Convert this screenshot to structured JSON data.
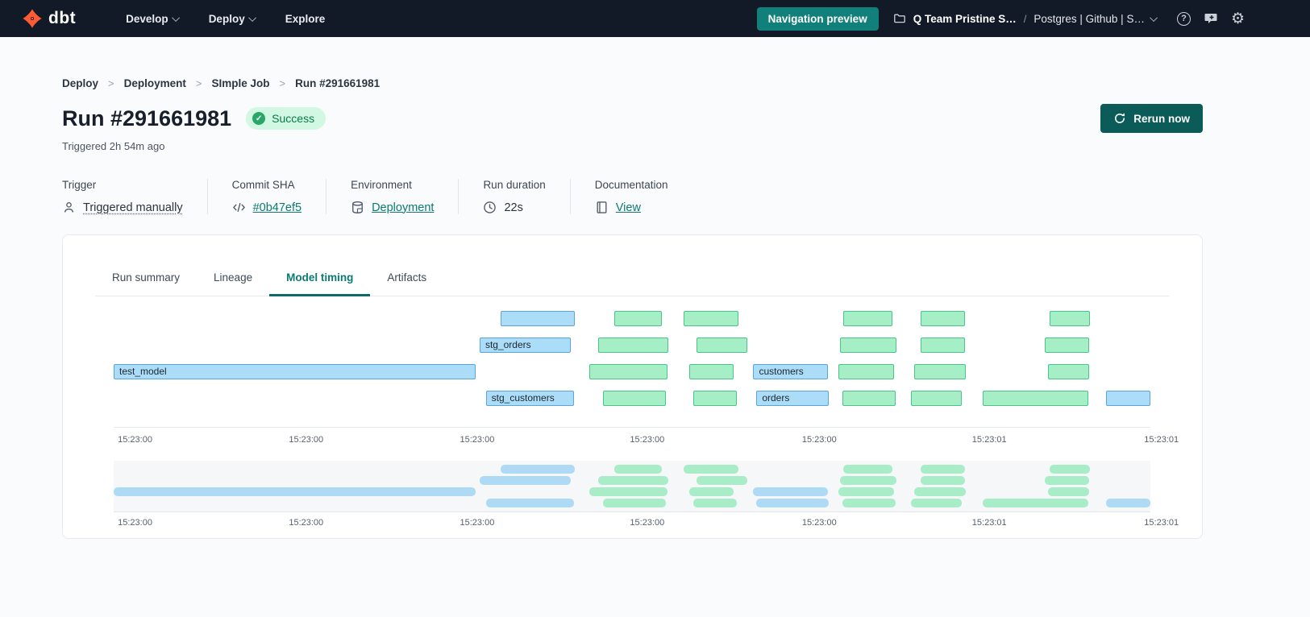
{
  "navbar": {
    "logo_text": "dbt",
    "menu": [
      {
        "label": "Develop",
        "chevron": true
      },
      {
        "label": "Deploy",
        "chevron": true
      },
      {
        "label": "Explore",
        "chevron": false
      }
    ],
    "preview_button": "Navigation preview",
    "account": {
      "team": "Q Team Pristine S…",
      "separator": "/",
      "project": "Postgres | Github | S…"
    }
  },
  "breadcrumb": {
    "items": [
      "Deploy",
      "Deployment",
      "SImple Job",
      "Run #291661981"
    ]
  },
  "header": {
    "title": "Run #291661981",
    "status": "Success",
    "triggered": "Triggered 2h 54m ago",
    "rerun_label": "Rerun now"
  },
  "meta": {
    "columns": [
      {
        "label": "Trigger",
        "value": "Triggered manually",
        "icon": "person-icon",
        "link": false,
        "dotted": true
      },
      {
        "label": "Commit SHA",
        "value": "#0b47ef5",
        "icon": "code-icon",
        "link": true,
        "dotted": false
      },
      {
        "label": "Environment",
        "value": "Deployment",
        "icon": "database-icon",
        "link": true,
        "dotted": false
      },
      {
        "label": "Run duration",
        "value": "22s",
        "icon": "clock-icon",
        "link": false,
        "dotted": false
      },
      {
        "label": "Documentation",
        "value": "View",
        "icon": "doc-icon",
        "link": true,
        "dotted": false
      }
    ]
  },
  "tabs": {
    "items": [
      {
        "label": "Run summary",
        "active": false
      },
      {
        "label": "Lineage",
        "active": false
      },
      {
        "label": "Model timing",
        "active": true
      },
      {
        "label": "Artifacts",
        "active": false
      }
    ]
  },
  "colors": {
    "accent_teal": "#0c7a72",
    "navbar_bg": "#131a27",
    "rerun_button": "#0b5c59",
    "preview_button": "#12807a",
    "success_bg": "#d2f7e2",
    "success_text": "#077a4e",
    "dbt_orange": "#ff5c35"
  },
  "chart_data": {
    "type": "gantt",
    "title": "Model timing",
    "time_axis": {
      "ticks": [
        {
          "label": "15:23:00",
          "pct": 0.4
        },
        {
          "label": "15:23:00",
          "pct": 16.9
        },
        {
          "label": "15:23:00",
          "pct": 33.4
        },
        {
          "label": "15:23:00",
          "pct": 49.8
        },
        {
          "label": "15:23:00",
          "pct": 66.4
        },
        {
          "label": "15:23:01",
          "pct": 82.8
        },
        {
          "label": "15:23:01",
          "pct": 99.4
        }
      ]
    },
    "named_models": [
      "test_model",
      "stg_orders",
      "stg_customers",
      "customers",
      "orders"
    ],
    "colors": {
      "blue_fill": "#abddf8",
      "blue_border": "#58a6dd",
      "green_fill": "#a6eec5",
      "green_border": "#47c688",
      "mini_blue": "#aedaf5",
      "mini_green": "#a8edc7"
    },
    "rows": [
      [
        {
          "c": "blue",
          "l": 37.3,
          "w": 7.2
        },
        {
          "c": "green",
          "l": 48.3,
          "w": 4.6
        },
        {
          "c": "green",
          "l": 55.0,
          "w": 5.3
        },
        {
          "c": "green",
          "l": 70.4,
          "w": 4.7
        },
        {
          "c": "green",
          "l": 77.8,
          "w": 4.3
        },
        {
          "c": "green",
          "l": 90.3,
          "w": 3.9
        }
      ],
      [
        {
          "c": "blue",
          "l": 35.3,
          "w": 8.8,
          "label": "stg_orders"
        },
        {
          "c": "green",
          "l": 46.7,
          "w": 6.8
        },
        {
          "c": "green",
          "l": 56.2,
          "w": 4.9
        },
        {
          "c": "green",
          "l": 70.1,
          "w": 5.4
        },
        {
          "c": "green",
          "l": 77.8,
          "w": 4.3
        },
        {
          "c": "green",
          "l": 89.8,
          "w": 4.3
        }
      ],
      [
        {
          "c": "blue",
          "l": 0.0,
          "w": 34.9,
          "label": "test_model"
        },
        {
          "c": "green",
          "l": 45.9,
          "w": 7.5
        },
        {
          "c": "green",
          "l": 55.5,
          "w": 4.3
        },
        {
          "c": "blue",
          "l": 61.7,
          "w": 7.2,
          "label": "customers"
        },
        {
          "c": "green",
          "l": 69.9,
          "w": 5.4
        },
        {
          "c": "green",
          "l": 77.2,
          "w": 5.0
        },
        {
          "c": "green",
          "l": 90.1,
          "w": 4.0
        }
      ],
      [
        {
          "c": "blue",
          "l": 35.9,
          "w": 8.5,
          "label": "stg_customers"
        },
        {
          "c": "green",
          "l": 47.2,
          "w": 6.1
        },
        {
          "c": "green",
          "l": 55.9,
          "w": 4.2
        },
        {
          "c": "blue",
          "l": 62.0,
          "w": 7.0,
          "label": "orders"
        },
        {
          "c": "green",
          "l": 70.3,
          "w": 5.1
        },
        {
          "c": "green",
          "l": 76.9,
          "w": 4.9
        },
        {
          "c": "green",
          "l": 83.8,
          "w": 10.2
        },
        {
          "c": "blue",
          "l": 95.7,
          "w": 4.3
        }
      ]
    ]
  }
}
